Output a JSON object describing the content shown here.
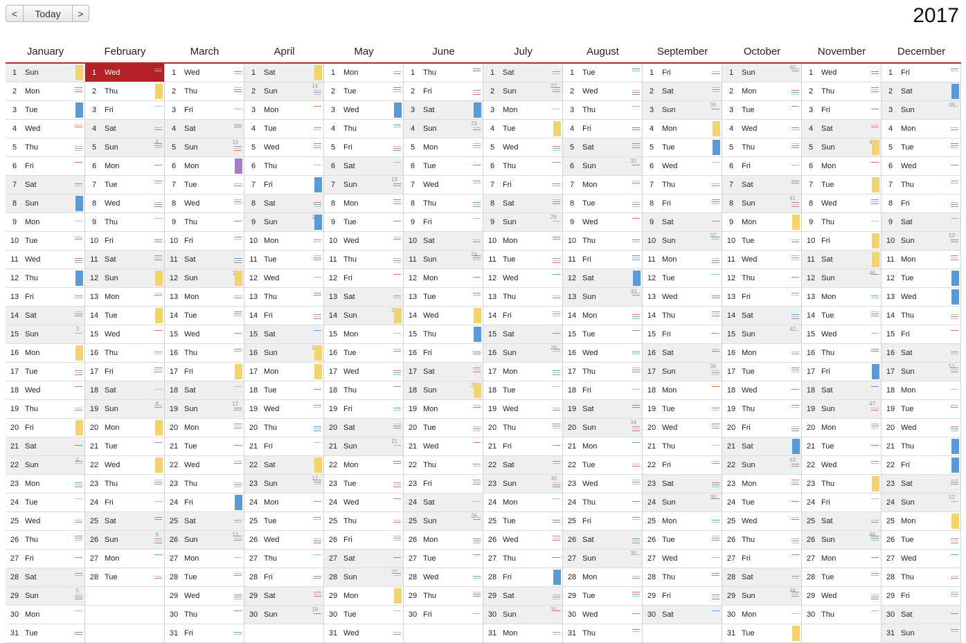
{
  "toolbar": {
    "prev_label": "<",
    "today_label": "Today",
    "next_label": ">"
  },
  "year": "2017",
  "months": [
    "January",
    "February",
    "March",
    "April",
    "May",
    "June",
    "July",
    "August",
    "September",
    "October",
    "November",
    "December"
  ],
  "month_lengths": [
    31,
    28,
    31,
    30,
    31,
    30,
    31,
    31,
    30,
    31,
    30,
    31
  ],
  "weekday_abbr": [
    "Sun",
    "Mon",
    "Tue",
    "Wed",
    "Thu",
    "Fri",
    "Sat"
  ],
  "first_weekday_index": [
    0,
    3,
    3,
    6,
    1,
    4,
    6,
    2,
    5,
    0,
    3,
    5
  ],
  "selected_day": {
    "month": 2,
    "day": 1
  },
  "week_number_marks": [
    {
      "m": 1,
      "d": 1,
      "n": "1"
    },
    {
      "m": 1,
      "d": 8,
      "n": "2"
    },
    {
      "m": 1,
      "d": 15,
      "n": "3"
    },
    {
      "m": 1,
      "d": 22,
      "n": "4"
    },
    {
      "m": 1,
      "d": 29,
      "n": "5"
    },
    {
      "m": 2,
      "d": 5,
      "n": "6"
    },
    {
      "m": 2,
      "d": 12,
      "n": "7"
    },
    {
      "m": 2,
      "d": 19,
      "n": "8"
    },
    {
      "m": 2,
      "d": 26,
      "n": "9"
    },
    {
      "m": 3,
      "d": 5,
      "n": "10"
    },
    {
      "m": 3,
      "d": 12,
      "n": "11"
    },
    {
      "m": 3,
      "d": 19,
      "n": "12"
    },
    {
      "m": 3,
      "d": 26,
      "n": "13"
    },
    {
      "m": 4,
      "d": 2,
      "n": "14"
    },
    {
      "m": 4,
      "d": 9,
      "n": "15"
    },
    {
      "m": 4,
      "d": 16,
      "n": "16"
    },
    {
      "m": 4,
      "d": 23,
      "n": "17"
    },
    {
      "m": 4,
      "d": 30,
      "n": "18"
    },
    {
      "m": 5,
      "d": 7,
      "n": "19"
    },
    {
      "m": 5,
      "d": 14,
      "n": "20"
    },
    {
      "m": 5,
      "d": 21,
      "n": "21"
    },
    {
      "m": 5,
      "d": 28,
      "n": "22"
    },
    {
      "m": 6,
      "d": 4,
      "n": "23"
    },
    {
      "m": 6,
      "d": 11,
      "n": "24"
    },
    {
      "m": 6,
      "d": 18,
      "n": "25"
    },
    {
      "m": 6,
      "d": 25,
      "n": "26"
    },
    {
      "m": 7,
      "d": 2,
      "n": "27"
    },
    {
      "m": 7,
      "d": 9,
      "n": "28"
    },
    {
      "m": 7,
      "d": 16,
      "n": "29"
    },
    {
      "m": 7,
      "d": 23,
      "n": "30"
    },
    {
      "m": 7,
      "d": 30,
      "n": "31"
    },
    {
      "m": 8,
      "d": 6,
      "n": "32"
    },
    {
      "m": 8,
      "d": 13,
      "n": "33"
    },
    {
      "m": 8,
      "d": 20,
      "n": "34"
    },
    {
      "m": 8,
      "d": 27,
      "n": "35"
    },
    {
      "m": 9,
      "d": 3,
      "n": "36"
    },
    {
      "m": 9,
      "d": 10,
      "n": "37"
    },
    {
      "m": 9,
      "d": 17,
      "n": "38"
    },
    {
      "m": 9,
      "d": 24,
      "n": "39"
    },
    {
      "m": 10,
      "d": 1,
      "n": "40"
    },
    {
      "m": 10,
      "d": 8,
      "n": "41"
    },
    {
      "m": 10,
      "d": 15,
      "n": "42"
    },
    {
      "m": 10,
      "d": 22,
      "n": "43"
    },
    {
      "m": 10,
      "d": 29,
      "n": "44"
    },
    {
      "m": 11,
      "d": 5,
      "n": "45"
    },
    {
      "m": 11,
      "d": 12,
      "n": "46"
    },
    {
      "m": 11,
      "d": 19,
      "n": "47"
    },
    {
      "m": 11,
      "d": 26,
      "n": "48"
    },
    {
      "m": 12,
      "d": 3,
      "n": "49"
    },
    {
      "m": 12,
      "d": 10,
      "n": "50"
    },
    {
      "m": 12,
      "d": 17,
      "n": "51"
    },
    {
      "m": 12,
      "d": 24,
      "n": "52"
    }
  ],
  "event_colors": {
    "green": "#8fd18f",
    "red": "#e06a5a",
    "purple": "#a77cc9",
    "blue": "#5a9bd5",
    "yellow": "#f3d46c",
    "gray": "#bdbdbd"
  },
  "block_events": [
    {
      "m": 1,
      "d": 1,
      "color": "yellow"
    },
    {
      "m": 1,
      "d": 3,
      "color": "blue"
    },
    {
      "m": 1,
      "d": 8,
      "color": "blue"
    },
    {
      "m": 1,
      "d": 12,
      "color": "blue"
    },
    {
      "m": 1,
      "d": 16,
      "color": "yellow"
    },
    {
      "m": 1,
      "d": 20,
      "color": "yellow"
    },
    {
      "m": 2,
      "d": 2,
      "color": "yellow"
    },
    {
      "m": 2,
      "d": 12,
      "color": "yellow"
    },
    {
      "m": 2,
      "d": 14,
      "color": "yellow"
    },
    {
      "m": 2,
      "d": 20,
      "color": "yellow"
    },
    {
      "m": 2,
      "d": 22,
      "color": "yellow"
    },
    {
      "m": 3,
      "d": 6,
      "color": "purple"
    },
    {
      "m": 3,
      "d": 12,
      "color": "yellow"
    },
    {
      "m": 3,
      "d": 17,
      "color": "yellow"
    },
    {
      "m": 3,
      "d": 24,
      "color": "blue"
    },
    {
      "m": 4,
      "d": 1,
      "color": "yellow"
    },
    {
      "m": 4,
      "d": 7,
      "color": "blue"
    },
    {
      "m": 4,
      "d": 9,
      "color": "blue"
    },
    {
      "m": 4,
      "d": 16,
      "color": "yellow"
    },
    {
      "m": 4,
      "d": 17,
      "color": "yellow"
    },
    {
      "m": 4,
      "d": 22,
      "color": "yellow"
    },
    {
      "m": 5,
      "d": 3,
      "color": "blue"
    },
    {
      "m": 5,
      "d": 14,
      "color": "yellow"
    },
    {
      "m": 5,
      "d": 29,
      "color": "yellow"
    },
    {
      "m": 6,
      "d": 3,
      "color": "blue"
    },
    {
      "m": 6,
      "d": 14,
      "color": "yellow"
    },
    {
      "m": 6,
      "d": 15,
      "color": "blue"
    },
    {
      "m": 6,
      "d": 18,
      "color": "yellow"
    },
    {
      "m": 7,
      "d": 4,
      "color": "yellow"
    },
    {
      "m": 7,
      "d": 28,
      "color": "blue"
    },
    {
      "m": 8,
      "d": 12,
      "color": "blue"
    },
    {
      "m": 9,
      "d": 4,
      "color": "yellow"
    },
    {
      "m": 9,
      "d": 5,
      "color": "blue"
    },
    {
      "m": 10,
      "d": 9,
      "color": "yellow"
    },
    {
      "m": 10,
      "d": 21,
      "color": "blue"
    },
    {
      "m": 10,
      "d": 31,
      "color": "yellow"
    },
    {
      "m": 11,
      "d": 5,
      "color": "yellow"
    },
    {
      "m": 11,
      "d": 7,
      "color": "yellow"
    },
    {
      "m": 11,
      "d": 10,
      "color": "yellow"
    },
    {
      "m": 11,
      "d": 11,
      "color": "yellow"
    },
    {
      "m": 11,
      "d": 17,
      "color": "blue"
    },
    {
      "m": 11,
      "d": 23,
      "color": "yellow"
    },
    {
      "m": 12,
      "d": 2,
      "color": "blue"
    },
    {
      "m": 12,
      "d": 12,
      "color": "blue"
    },
    {
      "m": 12,
      "d": 13,
      "color": "blue"
    },
    {
      "m": 12,
      "d": 21,
      "color": "blue"
    },
    {
      "m": 12,
      "d": 22,
      "color": "blue"
    },
    {
      "m": 12,
      "d": 25,
      "color": "yellow"
    }
  ]
}
